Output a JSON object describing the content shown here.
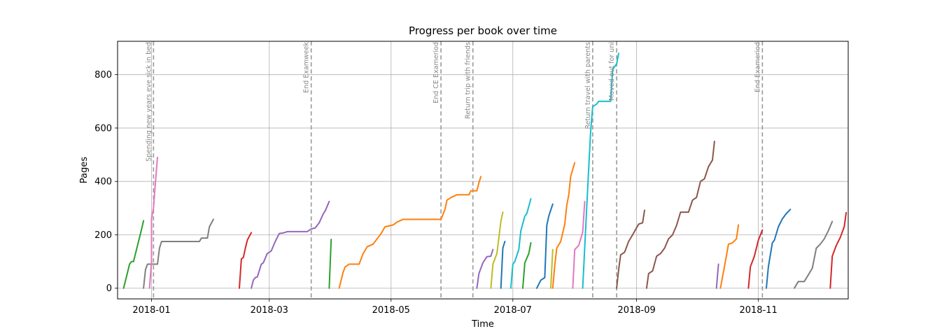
{
  "chart_data": {
    "type": "line",
    "title": "Progress per book over time",
    "xlabel": "Time",
    "ylabel": "Pages",
    "grid": true,
    "xlim": [
      "2017-12-15",
      "2018-12-16"
    ],
    "ylim": [
      -40,
      925
    ],
    "x_ticks": [
      {
        "date": "2018-01-01",
        "label": "2018-01"
      },
      {
        "date": "2018-03-01",
        "label": "2018-03"
      },
      {
        "date": "2018-05-01",
        "label": "2018-05"
      },
      {
        "date": "2018-07-01",
        "label": "2018-07"
      },
      {
        "date": "2018-09-01",
        "label": "2018-09"
      },
      {
        "date": "2018-11-01",
        "label": "2018-11"
      }
    ],
    "y_ticks": [
      {
        "value": 0,
        "label": "0"
      },
      {
        "value": 200,
        "label": "200"
      },
      {
        "value": 400,
        "label": "400"
      },
      {
        "value": 600,
        "label": "600"
      },
      {
        "value": 800,
        "label": "800"
      }
    ],
    "annotations": [
      {
        "date": "2018-01-02",
        "text": "Spending new years eve sick in bed"
      },
      {
        "date": "2018-03-22",
        "text": "End Examweek"
      },
      {
        "date": "2018-05-26",
        "text": "End CE Exameriod"
      },
      {
        "date": "2018-06-11",
        "text": "Return trip with friends"
      },
      {
        "date": "2018-08-10",
        "text": "Return travel with parents"
      },
      {
        "date": "2018-08-22",
        "text": "Moved out for uni"
      },
      {
        "date": "2018-11-03",
        "text": "End Exameriod"
      }
    ],
    "series": [
      {
        "color": "#2ca02c",
        "points": [
          [
            "2017-12-18",
            0
          ],
          [
            "2017-12-20",
            60
          ],
          [
            "2017-12-21",
            90
          ],
          [
            "2017-12-22",
            100
          ],
          [
            "2017-12-23",
            100
          ],
          [
            "2017-12-25",
            160
          ],
          [
            "2017-12-27",
            220
          ],
          [
            "2017-12-28",
            253
          ]
        ]
      },
      {
        "color": "#7f7f7f",
        "points": [
          [
            "2017-12-28",
            0
          ],
          [
            "2017-12-29",
            70
          ],
          [
            "2017-12-30",
            90
          ],
          [
            "2018-01-01",
            90
          ],
          [
            "2018-01-04",
            90
          ],
          [
            "2018-01-05",
            150
          ],
          [
            "2018-01-06",
            175
          ],
          [
            "2018-01-25",
            175
          ],
          [
            "2018-01-26",
            188
          ],
          [
            "2018-01-29",
            188
          ],
          [
            "2018-01-30",
            230
          ],
          [
            "2018-02-01",
            258
          ]
        ]
      },
      {
        "color": "#e377c2",
        "points": [
          [
            "2017-12-31",
            0
          ],
          [
            "2018-01-01",
            100
          ],
          [
            "2018-01-01",
            260
          ],
          [
            "2018-01-02",
            300
          ],
          [
            "2018-01-03",
            400
          ],
          [
            "2018-01-04",
            490
          ]
        ]
      },
      {
        "color": "#d62728",
        "points": [
          [
            "2018-02-14",
            0
          ],
          [
            "2018-02-15",
            110
          ],
          [
            "2018-02-16",
            115
          ],
          [
            "2018-02-17",
            150
          ],
          [
            "2018-02-18",
            180
          ],
          [
            "2018-02-19",
            195
          ],
          [
            "2018-02-20",
            208
          ]
        ]
      },
      {
        "color": "#9467bd",
        "points": [
          [
            "2018-02-20",
            0
          ],
          [
            "2018-02-21",
            30
          ],
          [
            "2018-02-22",
            40
          ],
          [
            "2018-02-23",
            42
          ],
          [
            "2018-02-25",
            90
          ],
          [
            "2018-02-26",
            95
          ],
          [
            "2018-02-28",
            130
          ],
          [
            "2018-03-02",
            140
          ],
          [
            "2018-03-04",
            175
          ],
          [
            "2018-03-06",
            205
          ],
          [
            "2018-03-08",
            207
          ],
          [
            "2018-03-10",
            212
          ],
          [
            "2018-03-20",
            212
          ],
          [
            "2018-03-22",
            222
          ],
          [
            "2018-03-24",
            226
          ],
          [
            "2018-03-26",
            245
          ],
          [
            "2018-03-28",
            278
          ],
          [
            "2018-03-29",
            290
          ],
          [
            "2018-03-31",
            325
          ]
        ]
      },
      {
        "color": "#2ca02c",
        "points": [
          [
            "2018-03-31",
            0
          ],
          [
            "2018-04-01",
            183
          ]
        ]
      },
      {
        "color": "#ff7f0e",
        "points": [
          [
            "2018-04-05",
            0
          ],
          [
            "2018-04-07",
            60
          ],
          [
            "2018-04-08",
            80
          ],
          [
            "2018-04-10",
            90
          ],
          [
            "2018-04-15",
            90
          ],
          [
            "2018-04-17",
            130
          ],
          [
            "2018-04-19",
            155
          ],
          [
            "2018-04-22",
            165
          ],
          [
            "2018-04-24",
            185
          ],
          [
            "2018-04-26",
            205
          ],
          [
            "2018-04-28",
            230
          ],
          [
            "2018-05-02",
            237
          ],
          [
            "2018-05-04",
            248
          ],
          [
            "2018-05-07",
            258
          ],
          [
            "2018-05-26",
            258
          ],
          [
            "2018-05-28",
            295
          ],
          [
            "2018-05-29",
            330
          ],
          [
            "2018-05-31",
            340
          ],
          [
            "2018-06-03",
            350
          ],
          [
            "2018-06-09",
            350
          ],
          [
            "2018-06-10",
            365
          ],
          [
            "2018-06-13",
            365
          ],
          [
            "2018-06-14",
            395
          ],
          [
            "2018-06-15",
            418
          ]
        ]
      },
      {
        "color": "#9467bd",
        "points": [
          [
            "2018-06-13",
            0
          ],
          [
            "2018-06-14",
            55
          ],
          [
            "2018-06-16",
            95
          ],
          [
            "2018-06-18",
            118
          ],
          [
            "2018-06-20",
            120
          ],
          [
            "2018-06-21",
            145
          ]
        ]
      },
      {
        "color": "#bcbd22",
        "points": [
          [
            "2018-06-20",
            0
          ],
          [
            "2018-06-21",
            90
          ],
          [
            "2018-06-23",
            130
          ],
          [
            "2018-06-25",
            250
          ],
          [
            "2018-06-26",
            285
          ]
        ]
      },
      {
        "color": "#1f77b4",
        "points": [
          [
            "2018-06-25",
            0
          ],
          [
            "2018-06-26",
            150
          ],
          [
            "2018-06-27",
            175
          ]
        ]
      },
      {
        "color": "#17becf",
        "points": [
          [
            "2018-06-30",
            0
          ],
          [
            "2018-07-01",
            90
          ],
          [
            "2018-07-02",
            100
          ],
          [
            "2018-07-04",
            145
          ],
          [
            "2018-07-05",
            215
          ],
          [
            "2018-07-07",
            270
          ],
          [
            "2018-07-08",
            280
          ],
          [
            "2018-07-10",
            335
          ]
        ]
      },
      {
        "color": "#2ca02c",
        "points": [
          [
            "2018-07-06",
            0
          ],
          [
            "2018-07-07",
            95
          ],
          [
            "2018-07-09",
            130
          ],
          [
            "2018-07-10",
            170
          ]
        ]
      },
      {
        "color": "#1f77b4",
        "points": [
          [
            "2018-07-13",
            0
          ],
          [
            "2018-07-15",
            30
          ],
          [
            "2018-07-16",
            35
          ],
          [
            "2018-07-17",
            40
          ],
          [
            "2018-07-18",
            235
          ],
          [
            "2018-07-19",
            270
          ],
          [
            "2018-07-21",
            315
          ]
        ]
      },
      {
        "color": "#bcbd22",
        "points": [
          [
            "2018-07-20",
            0
          ],
          [
            "2018-07-21",
            145
          ]
        ]
      },
      {
        "color": "#ff7f0e",
        "points": [
          [
            "2018-07-21",
            0
          ],
          [
            "2018-07-22",
            85
          ],
          [
            "2018-07-23",
            150
          ],
          [
            "2018-07-25",
            175
          ],
          [
            "2018-07-27",
            240
          ],
          [
            "2018-07-28",
            310
          ],
          [
            "2018-07-29",
            350
          ],
          [
            "2018-07-30",
            420
          ],
          [
            "2018-08-01",
            470
          ]
        ]
      },
      {
        "color": "#e377c2",
        "points": [
          [
            "2018-07-31",
            0
          ],
          [
            "2018-08-01",
            145
          ],
          [
            "2018-08-03",
            160
          ],
          [
            "2018-08-05",
            210
          ],
          [
            "2018-08-06",
            325
          ]
        ]
      },
      {
        "color": "#17becf",
        "points": [
          [
            "2018-08-05",
            0
          ],
          [
            "2018-08-07",
            300
          ],
          [
            "2018-08-08",
            450
          ],
          [
            "2018-08-09",
            590
          ],
          [
            "2018-08-10",
            680
          ],
          [
            "2018-08-12",
            690
          ],
          [
            "2018-08-13",
            700
          ],
          [
            "2018-08-19",
            700
          ],
          [
            "2018-08-20",
            820
          ],
          [
            "2018-08-22",
            840
          ],
          [
            "2018-08-23",
            880
          ]
        ]
      },
      {
        "color": "#8c564b",
        "points": [
          [
            "2018-08-22",
            0
          ],
          [
            "2018-08-23",
            70
          ],
          [
            "2018-08-24",
            125
          ],
          [
            "2018-08-26",
            135
          ],
          [
            "2018-08-28",
            175
          ],
          [
            "2018-08-30",
            200
          ],
          [
            "2018-09-02",
            240
          ],
          [
            "2018-09-04",
            245
          ],
          [
            "2018-09-05",
            292
          ]
        ]
      },
      {
        "color": "#8c564b",
        "points": [
          [
            "2018-09-06",
            0
          ],
          [
            "2018-09-07",
            55
          ],
          [
            "2018-09-09",
            65
          ],
          [
            "2018-09-11",
            120
          ],
          [
            "2018-09-13",
            130
          ],
          [
            "2018-09-15",
            150
          ],
          [
            "2018-09-17",
            185
          ],
          [
            "2018-09-19",
            200
          ],
          [
            "2018-09-21",
            235
          ],
          [
            "2018-09-23",
            285
          ],
          [
            "2018-09-27",
            285
          ],
          [
            "2018-09-29",
            330
          ],
          [
            "2018-10-01",
            340
          ],
          [
            "2018-10-03",
            400
          ],
          [
            "2018-10-05",
            410
          ],
          [
            "2018-10-07",
            455
          ],
          [
            "2018-10-09",
            480
          ],
          [
            "2018-10-10",
            550
          ]
        ]
      },
      {
        "color": "#9467bd",
        "points": [
          [
            "2018-10-11",
            0
          ],
          [
            "2018-10-12",
            90
          ]
        ]
      },
      {
        "color": "#ff7f0e",
        "points": [
          [
            "2018-10-13",
            0
          ],
          [
            "2018-10-15",
            80
          ],
          [
            "2018-10-17",
            165
          ],
          [
            "2018-10-19",
            170
          ],
          [
            "2018-10-21",
            185
          ],
          [
            "2018-10-22",
            237
          ]
        ]
      },
      {
        "color": "#d62728",
        "points": [
          [
            "2018-10-27",
            0
          ],
          [
            "2018-10-28",
            80
          ],
          [
            "2018-10-30",
            120
          ],
          [
            "2018-11-01",
            180
          ],
          [
            "2018-11-03",
            218
          ]
        ]
      },
      {
        "color": "#1f77b4",
        "points": [
          [
            "2018-11-05",
            0
          ],
          [
            "2018-11-06",
            80
          ],
          [
            "2018-11-08",
            170
          ],
          [
            "2018-11-09",
            180
          ],
          [
            "2018-11-11",
            230
          ],
          [
            "2018-11-13",
            260
          ],
          [
            "2018-11-15",
            280
          ],
          [
            "2018-11-17",
            295
          ]
        ]
      },
      {
        "color": "#7f7f7f",
        "points": [
          [
            "2018-11-19",
            0
          ],
          [
            "2018-11-21",
            25
          ],
          [
            "2018-11-24",
            25
          ],
          [
            "2018-11-26",
            50
          ],
          [
            "2018-11-28",
            75
          ],
          [
            "2018-11-30",
            150
          ],
          [
            "2018-12-02",
            165
          ],
          [
            "2018-12-04",
            185
          ],
          [
            "2018-12-06",
            215
          ],
          [
            "2018-12-08",
            250
          ]
        ]
      },
      {
        "color": "#d62728",
        "points": [
          [
            "2018-12-07",
            0
          ],
          [
            "2018-12-08",
            120
          ],
          [
            "2018-12-10",
            160
          ],
          [
            "2018-12-12",
            190
          ],
          [
            "2018-12-14",
            230
          ],
          [
            "2018-12-15",
            283
          ]
        ]
      }
    ]
  }
}
